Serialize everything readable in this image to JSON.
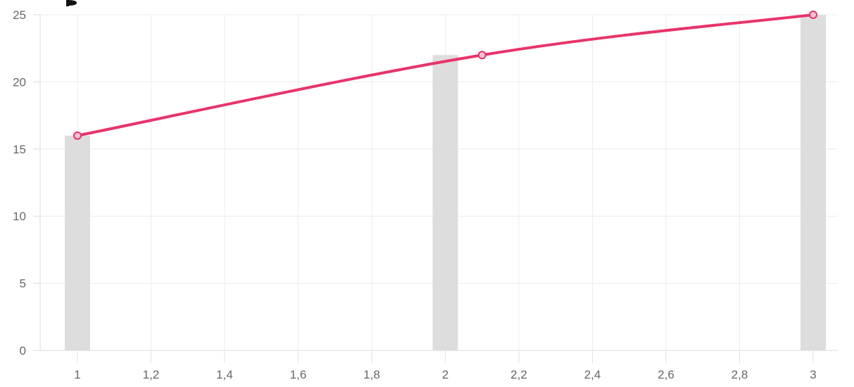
{
  "chart_data": {
    "type": "bar",
    "title": "",
    "xlabel": "",
    "ylabel": "",
    "xlim": [
      1,
      3
    ],
    "ylim": [
      0,
      25
    ],
    "grid": true,
    "x_ticks": [
      "1",
      "1,2",
      "1,4",
      "1,6",
      "1,8",
      "2",
      "2,2",
      "2,4",
      "2,6",
      "2,8",
      "3"
    ],
    "y_ticks": [
      "0",
      "5",
      "10",
      "15",
      "20",
      "25"
    ],
    "series": [
      {
        "type": "bar",
        "color": "#dddddd",
        "x": [
          1,
          2,
          3
        ],
        "values": [
          16,
          22,
          25
        ]
      },
      {
        "type": "line",
        "color": "#e8336b",
        "x": [
          1,
          2.1,
          3
        ],
        "values": [
          16,
          22,
          25
        ]
      }
    ]
  }
}
